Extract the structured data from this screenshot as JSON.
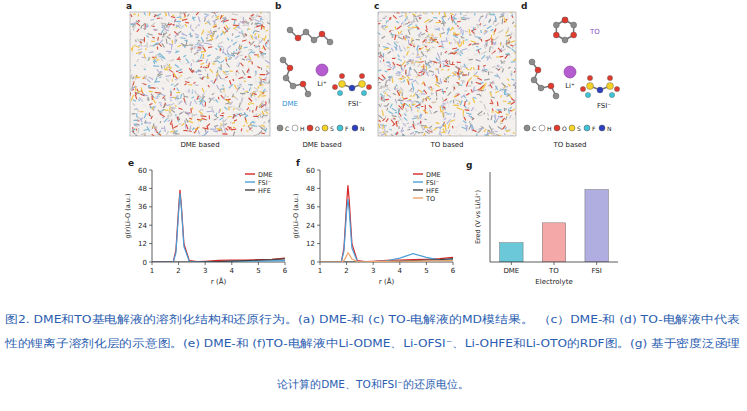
{
  "panels": [
    {
      "label": "a",
      "caption": "DME based"
    },
    {
      "label": "b",
      "caption": "DME based",
      "texts": [
        "Li⁺",
        "DME",
        "FSI⁻"
      ],
      "atom_legend": [
        "C",
        "H",
        "O",
        "S",
        "F",
        "N"
      ]
    },
    {
      "label": "c",
      "caption": "TO based"
    },
    {
      "label": "d",
      "caption": "TO based",
      "texts": [
        "Li⁺",
        "TO",
        "FSI⁻"
      ],
      "atom_legend": [
        "C",
        "H",
        "O",
        "S",
        "F",
        "N"
      ]
    }
  ],
  "chart_data": [
    {
      "type": "line",
      "label": "e",
      "x_label": "r (Å)",
      "y_label": "g(r)Li–O (a.u.)",
      "x": [
        1,
        1.8,
        1.9,
        2.0,
        2.05,
        2.1,
        2.2,
        2.4,
        2.7,
        3,
        3.5,
        4,
        4.5,
        5,
        5.5,
        6
      ],
      "xlim": [
        1,
        6
      ],
      "xticks": [
        1,
        2,
        3,
        4,
        5,
        6
      ],
      "ylim": [
        0,
        60
      ],
      "yticks": [
        0,
        12,
        24,
        36,
        48,
        60
      ],
      "legend": "upper right",
      "series": [
        {
          "name": "DME",
          "color": "#d62728",
          "values": [
            0,
            0,
            8,
            35,
            47,
            38,
            12,
            1,
            0.3,
            0.5,
            1,
            1.2,
            1.3,
            1.5,
            1.8,
            2.5
          ]
        },
        {
          "name": "FSI⁻",
          "color": "#4a9fd8",
          "values": [
            0,
            0,
            6,
            32,
            45,
            36,
            10,
            0.5,
            0.1,
            0.2,
            0.3,
            0.4,
            0.5,
            0.6,
            0.7,
            0.9
          ]
        },
        {
          "name": "HFE",
          "color": "#444444",
          "values": [
            0,
            0,
            0,
            0,
            0,
            0,
            0,
            0,
            0,
            0.1,
            0.3,
            0.6,
            0.9,
            1.2,
            1.5,
            2
          ]
        }
      ]
    },
    {
      "type": "line",
      "label": "f",
      "x_label": "r (Å)",
      "y_label": "g(r)Li–O (a.u.)",
      "x": [
        1,
        1.8,
        1.9,
        2.0,
        2.05,
        2.1,
        2.2,
        2.4,
        2.7,
        3,
        3.5,
        4,
        4.5,
        5,
        5.5,
        6
      ],
      "xlim": [
        1,
        6
      ],
      "xticks": [
        1,
        2,
        3,
        4,
        5,
        6
      ],
      "ylim": [
        0,
        60
      ],
      "yticks": [
        0,
        12,
        24,
        36,
        48,
        60
      ],
      "legend": "upper right",
      "series": [
        {
          "name": "DME",
          "color": "#d62728",
          "values": [
            0,
            0,
            9,
            38,
            50,
            40,
            12,
            1,
            0.3,
            0.5,
            1,
            1.3,
            1.5,
            1.8,
            2.2,
            3
          ]
        },
        {
          "name": "FSI⁻",
          "color": "#4a9fd8",
          "values": [
            0,
            0,
            7,
            33,
            41,
            33,
            9,
            0.5,
            0.1,
            0.3,
            0.8,
            2.5,
            5.5,
            3,
            1.2,
            1.5
          ]
        },
        {
          "name": "HFE",
          "color": "#444444",
          "values": [
            0,
            0,
            0,
            0,
            0,
            0,
            0,
            0,
            0,
            0.1,
            0.3,
            0.6,
            0.9,
            1.2,
            1.6,
            2.2
          ]
        },
        {
          "name": "TO",
          "color": "#f0a56b",
          "values": [
            0,
            0,
            1,
            4,
            6,
            5,
            2,
            0.3,
            0.1,
            0.2,
            0.4,
            0.5,
            0.6,
            0.7,
            0.8,
            1
          ]
        }
      ]
    },
    {
      "type": "bar",
      "label": "g",
      "x_label": "Electrolyte",
      "y_label": "Ered (V vs Li/Li⁺)",
      "categories": [
        "DME",
        "TO",
        "FSI"
      ],
      "values": [
        0.43,
        0.87,
        1.61
      ],
      "colors": [
        "#6bc8d9",
        "#f4a9a8",
        "#b0aee0"
      ],
      "ylim": [
        0,
        2
      ],
      "tick_labels": "x"
    }
  ],
  "figure_caption": [
    "图2. DME和TO基电解液的溶剂化结构和还原行为。(a) DME-和 (c) TO-电解液的MD模结果。 （c）DME-和 (d) TO-电解液中代表",
    "性的锂离子溶剂化层的示意图。(e) DME-和 (f)TO-电解液中Li-ODME、Li-OFSI⁻、Li-OHFE和Li-OTO的RDF图。(g) 基于密度泛函理",
    "论计算的DME、TO和FSI⁻的还原电位。"
  ]
}
